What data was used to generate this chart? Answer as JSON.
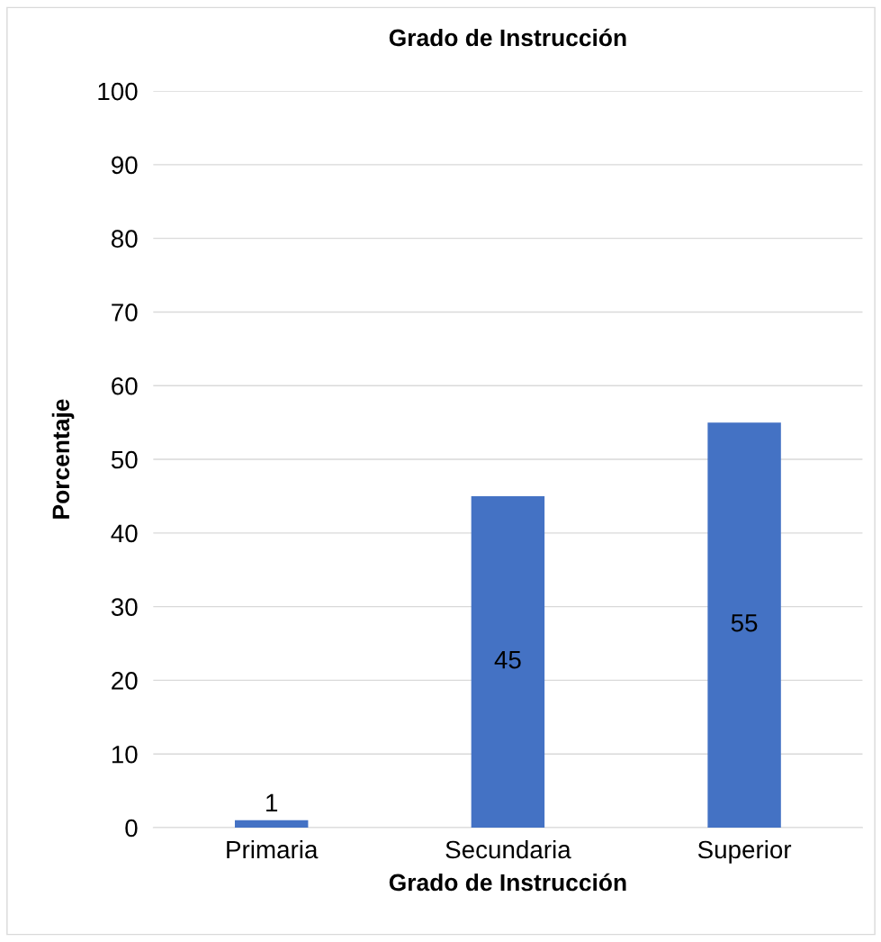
{
  "chart_data": {
    "type": "bar",
    "title": "Grado de Instrucción",
    "xlabel": "Grado de Instrucción",
    "ylabel": "Porcentaje",
    "categories": [
      "Primaria",
      "Secundaria",
      "Superior"
    ],
    "values": [
      1,
      45,
      55
    ],
    "color": "#4472c4",
    "ylim": [
      0,
      100
    ],
    "yticks": [
      0,
      10,
      20,
      30,
      40,
      50,
      60,
      70,
      80,
      90,
      100
    ],
    "grid": "y",
    "data_labels": true,
    "legend": false
  }
}
